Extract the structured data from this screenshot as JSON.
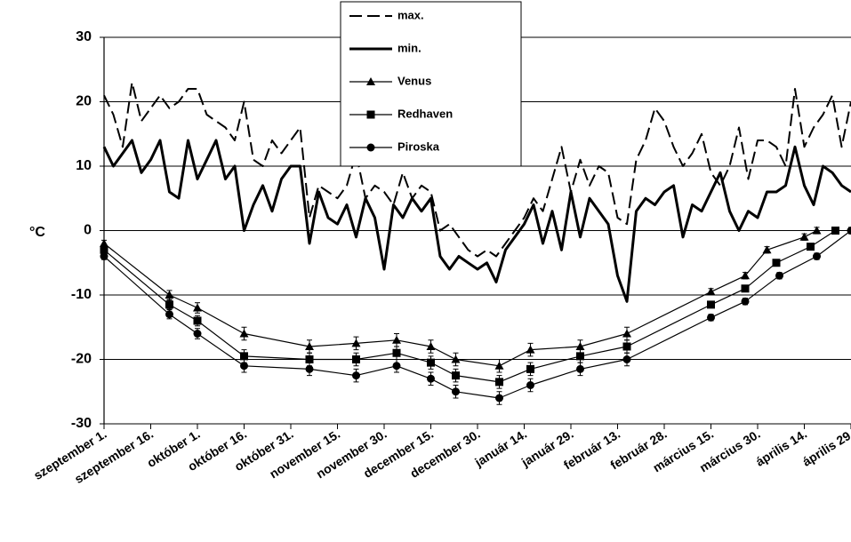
{
  "chart_data": {
    "type": "line",
    "ylabel": "°C",
    "x": [
      0,
      3,
      6,
      9,
      12,
      15,
      18,
      21,
      24,
      27,
      30,
      33,
      36,
      39,
      42,
      45,
      48,
      51,
      54,
      57,
      60,
      63,
      66,
      69,
      72,
      75,
      78,
      81,
      84,
      87,
      90,
      93,
      96,
      99,
      102,
      105,
      108,
      111,
      114,
      117,
      120,
      123,
      126,
      129,
      132,
      135,
      138,
      141,
      144,
      147,
      150,
      153,
      156,
      159,
      162,
      165,
      168,
      171,
      174,
      177,
      180,
      183,
      186,
      189,
      192,
      195,
      198,
      201,
      204,
      207,
      210,
      213,
      216,
      219,
      222,
      225,
      228,
      231,
      234,
      237,
      240
    ],
    "xlim": [
      0,
      240
    ],
    "xticks": [
      {
        "value": 0,
        "label": "szeptember 1."
      },
      {
        "value": 15,
        "label": "szeptember 16."
      },
      {
        "value": 30,
        "label": "október 1."
      },
      {
        "value": 45,
        "label": "október 16."
      },
      {
        "value": 60,
        "label": "október 31."
      },
      {
        "value": 75,
        "label": "november 15."
      },
      {
        "value": 90,
        "label": "november 30."
      },
      {
        "value": 105,
        "label": "december 15."
      },
      {
        "value": 120,
        "label": "december 30."
      },
      {
        "value": 135,
        "label": "január 14."
      },
      {
        "value": 150,
        "label": "január 29."
      },
      {
        "value": 165,
        "label": "február 13."
      },
      {
        "value": 180,
        "label": "február 28."
      },
      {
        "value": 195,
        "label": "március 15."
      },
      {
        "value": 210,
        "label": "március 30."
      },
      {
        "value": 225,
        "label": "április 14."
      },
      {
        "value": 240,
        "label": "április 29."
      }
    ],
    "ylim": [
      -30,
      30
    ],
    "yticks": [
      -30,
      -20,
      -10,
      0,
      10,
      20,
      30
    ],
    "grid": true,
    "legend": "top-center",
    "series": [
      {
        "name": "max.",
        "color": "#000000",
        "line_style": "dashed",
        "values": [
          21,
          18,
          13,
          23,
          17,
          19,
          21,
          19,
          20,
          22,
          22,
          18,
          17,
          16,
          14,
          20,
          11,
          10,
          14,
          12,
          14,
          16,
          2,
          7,
          6,
          5,
          7,
          12,
          5,
          7,
          6,
          4,
          9,
          5,
          7,
          6,
          0,
          1,
          -1,
          -3,
          -4,
          -3,
          -4,
          -2,
          0,
          2,
          5,
          3,
          8,
          13,
          6,
          11,
          7,
          10,
          9,
          2,
          1,
          11,
          14,
          19,
          17,
          13,
          10,
          12,
          15,
          9,
          7,
          10,
          16,
          8,
          14,
          14,
          13,
          10,
          22,
          13,
          16,
          18,
          21,
          13,
          20
        ]
      },
      {
        "name": "min.",
        "color": "#000000",
        "line_style": "solid",
        "values": [
          13,
          10,
          12,
          14,
          9,
          11,
          14,
          6,
          5,
          14,
          8,
          11,
          14,
          8,
          10,
          0,
          4,
          7,
          3,
          8,
          10,
          10,
          -2,
          6,
          2,
          1,
          4,
          -1,
          5,
          2,
          -6,
          4,
          2,
          5,
          3,
          5,
          -4,
          -6,
          -4,
          -5,
          -6,
          -5,
          -8,
          -3,
          -1,
          1,
          4,
          -2,
          3,
          -3,
          6,
          -1,
          5,
          3,
          1,
          -7,
          -11,
          3,
          5,
          4,
          6,
          7,
          -1,
          4,
          3,
          6,
          9,
          3,
          0,
          3,
          2,
          6,
          6,
          7,
          13,
          7,
          4,
          10,
          9,
          7,
          6
        ]
      },
      {
        "name": "Venus",
        "color": "#000000",
        "marker": "triangle",
        "x": [
          0,
          21,
          30,
          45,
          66,
          81,
          94,
          105,
          113,
          127,
          137,
          153,
          168,
          195,
          206,
          213,
          225,
          229
        ],
        "values": [
          -2,
          -10,
          -12,
          -16,
          -18,
          -17.5,
          -17,
          -18,
          -20,
          -21,
          -18.5,
          -18,
          -16,
          -9.5,
          -7,
          -3,
          -1,
          0
        ],
        "errors": [
          0.5,
          0.7,
          0.8,
          1,
          1,
          1,
          1,
          1,
          1,
          1,
          1,
          1,
          1,
          0.5,
          0.5,
          0.5,
          0.5,
          0.5
        ]
      },
      {
        "name": "Redhaven",
        "color": "#000000",
        "marker": "square",
        "x": [
          0,
          21,
          30,
          45,
          66,
          81,
          94,
          105,
          113,
          127,
          137,
          153,
          168,
          195,
          206,
          216,
          227,
          235
        ],
        "values": [
          -3,
          -11.5,
          -14,
          -19.5,
          -20,
          -20,
          -19,
          -20.5,
          -22.5,
          -23.5,
          -21.5,
          -19.5,
          -18,
          -11.5,
          -9,
          -5,
          -2.5,
          0
        ],
        "errors": [
          0.5,
          0.7,
          0.8,
          1,
          1,
          1,
          1,
          1,
          1,
          1,
          1,
          1,
          1,
          0.5,
          0.5,
          0.5,
          0.5,
          0.5
        ]
      },
      {
        "name": "Piroska",
        "color": "#000000",
        "marker": "circle",
        "x": [
          0,
          21,
          30,
          45,
          66,
          81,
          94,
          105,
          113,
          127,
          137,
          153,
          168,
          195,
          206,
          217,
          229,
          240
        ],
        "values": [
          -4,
          -13,
          -16,
          -21,
          -21.5,
          -22.5,
          -21,
          -23,
          -25,
          -26,
          -24,
          -21.5,
          -20,
          -13.5,
          -11,
          -7,
          -4,
          0
        ],
        "errors": [
          0.5,
          0.7,
          0.8,
          1,
          1,
          1,
          1,
          1,
          1,
          1,
          1,
          1,
          1,
          0.5,
          0.5,
          0.5,
          0.5,
          0.5
        ]
      }
    ]
  }
}
